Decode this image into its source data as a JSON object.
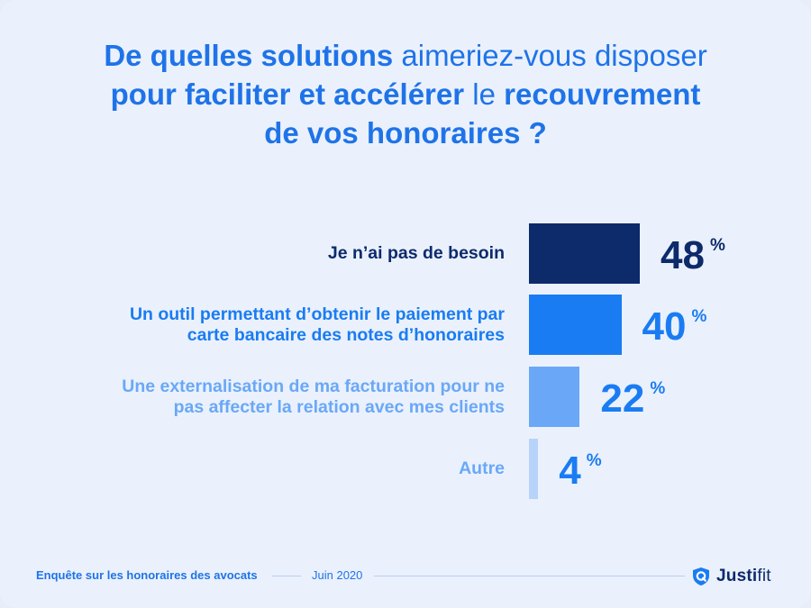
{
  "title": {
    "p1": "De quelles solutions",
    "p2": " aimeriez-vous disposer",
    "p3": "pour faciliter et accélérer",
    "p4": " le ",
    "p5": "recouvrement",
    "p6": "de vos honoraires ?"
  },
  "chart_data": {
    "type": "bar",
    "orientation": "horizontal",
    "unit": "%",
    "categories": [
      [
        "Je n’ai pas de besoin"
      ],
      [
        "Un outil permettant d’obtenir le paiement par",
        "carte bancaire des notes d’honoraires"
      ],
      [
        "Une externalisation de ma facturation pour ne",
        "pas affecter la relation avec mes clients"
      ],
      [
        "Autre"
      ]
    ],
    "values": [
      48,
      40,
      22,
      4
    ],
    "colors": [
      "#0d2a6b",
      "#1a7cf2",
      "#6aa8f7",
      "#b7d3fa"
    ],
    "label_colors": [
      "#0d2a6b",
      "#1a7cf2",
      "#6aa8f7",
      "#6aa8f7"
    ],
    "value_colors": [
      "#0d2a6b",
      "#1a7cf2",
      "#1a7cf2",
      "#1a7cf2"
    ],
    "grid": false,
    "legend": "none"
  },
  "footer": {
    "source": "Enquête sur les honoraires des avocats",
    "date": "Juin 2020",
    "brand_a": "Justi",
    "brand_b": "fit"
  }
}
